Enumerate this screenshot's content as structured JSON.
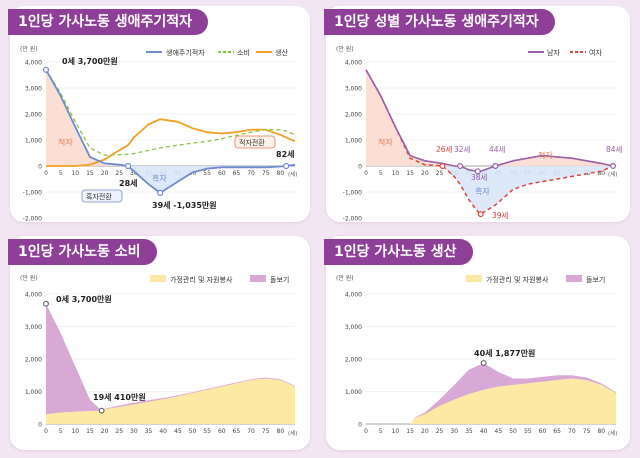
{
  "charts": [
    {
      "title": "1인당 가사노동 생애주기적자",
      "unit": "(만 원)",
      "xunit": "(세)",
      "legend": [
        "생애주기적자",
        "소비",
        "생산"
      ],
      "annotations": {
        "start": "0세 3,700만원",
        "low": "39세 -1,035만원",
        "turn1": "28세",
        "turn2": "82세",
        "deficit": "적자",
        "surplus": "흑자",
        "to_surplus": "흑자전환",
        "to_deficit": "적자전환"
      }
    },
    {
      "title": "1인당 성별 가사노동 생애주기적자",
      "unit": "(만 원)",
      "xunit": "(세)",
      "legend": [
        "남자",
        "여자"
      ],
      "annotations": {
        "f1": "26세",
        "m1": "32세",
        "m2": "44세",
        "m3": "84세",
        "f_low": "38세",
        "f_low2": "39세",
        "deficit1": "적자",
        "deficit2": "적자",
        "surplus": "흑자"
      }
    },
    {
      "title": "1인당 가사노동 소비",
      "unit": "(만 원)",
      "xunit": "(세)",
      "legend": [
        "가정관리 및 자원봉사",
        "돌보기"
      ],
      "annotations": {
        "start": "0세 3,700만원",
        "min": "19세 410만원"
      }
    },
    {
      "title": "1인당 가사노동 생산",
      "unit": "(만 원)",
      "xunit": "(세)",
      "legend": [
        "가정관리 및 자원봉사",
        "돌보기"
      ],
      "annotations": {
        "peak": "40세 1,877만원"
      }
    }
  ],
  "colors": {
    "lcd": "#6f8bd0",
    "consumption": "#8cc63f",
    "production": "#f2a024",
    "male": "#9b5ea8",
    "female": "#e0443c",
    "deficit_fill": "#fbdcd0",
    "surplus_fill": "#d9e6f7",
    "housework": "#fbe9a4",
    "care": "#d9a9d6"
  },
  "chart_data": [
    {
      "type": "line",
      "title": "1인당 가사노동 생애주기적자",
      "x": [
        0,
        5,
        10,
        15,
        20,
        25,
        28,
        30,
        35,
        39,
        45,
        50,
        55,
        60,
        65,
        70,
        75,
        80,
        82,
        85
      ],
      "xticks": [
        0,
        5,
        10,
        15,
        20,
        25,
        30,
        35,
        40,
        45,
        50,
        55,
        60,
        65,
        70,
        75,
        80
      ],
      "yticks": [
        -2000,
        -1000,
        0,
        1000,
        2000,
        3000,
        4000
      ],
      "ylim": [
        -2000,
        4000
      ],
      "xlim": [
        0,
        85
      ],
      "series": [
        {
          "name": "생애주기적자",
          "values": [
            3700,
            2700,
            1500,
            350,
            100,
            50,
            0,
            -200,
            -700,
            -1035,
            -600,
            -250,
            -100,
            -50,
            -50,
            -50,
            -50,
            -20,
            0,
            50
          ]
        },
        {
          "name": "소비",
          "values": [
            3700,
            2800,
            1700,
            700,
            420,
            430,
            450,
            480,
            600,
            700,
            800,
            880,
            950,
            1050,
            1180,
            1300,
            1400,
            1400,
            1350,
            1200
          ]
        },
        {
          "name": "생산",
          "values": [
            0,
            0,
            0,
            50,
            250,
            600,
            800,
            1100,
            1600,
            1800,
            1700,
            1450,
            1300,
            1250,
            1300,
            1400,
            1400,
            1200,
            1100,
            950
          ]
        }
      ]
    },
    {
      "type": "line",
      "title": "1인당 성별 가사노동 생애주기적자",
      "x": [
        0,
        5,
        10,
        15,
        20,
        26,
        30,
        32,
        35,
        38,
        39,
        44,
        50,
        55,
        60,
        65,
        70,
        75,
        80,
        84
      ],
      "xticks": [
        0,
        5,
        10,
        15,
        20,
        25,
        30,
        35,
        40,
        45,
        50,
        55,
        60,
        65,
        70,
        75,
        80
      ],
      "yticks": [
        -2000,
        -1000,
        0,
        1000,
        2000,
        3000,
        4000
      ],
      "ylim": [
        -2000,
        4000
      ],
      "xlim": [
        0,
        85
      ],
      "series": [
        {
          "name": "남자",
          "values": [
            3700,
            2700,
            1500,
            400,
            200,
            100,
            0,
            0,
            -150,
            -200,
            -200,
            0,
            200,
            300,
            400,
            350,
            300,
            200,
            100,
            0
          ]
        },
        {
          "name": "여자",
          "values": [
            3700,
            2700,
            1500,
            300,
            50,
            0,
            -400,
            -700,
            -1300,
            -1750,
            -1850,
            -1500,
            -900,
            -700,
            -600,
            -500,
            -400,
            -300,
            -200,
            0
          ]
        }
      ]
    },
    {
      "type": "area",
      "title": "1인당 가사노동 소비",
      "x": [
        0,
        5,
        10,
        15,
        19,
        20,
        25,
        30,
        35,
        40,
        45,
        50,
        55,
        60,
        65,
        70,
        75,
        80,
        85
      ],
      "xticks": [
        0,
        5,
        10,
        15,
        20,
        25,
        30,
        35,
        40,
        45,
        50,
        55,
        60,
        65,
        70,
        75,
        80
      ],
      "yticks": [
        0,
        1000,
        2000,
        3000,
        4000
      ],
      "ylim": [
        0,
        4000
      ],
      "xlim": [
        0,
        85
      ],
      "series": [
        {
          "name": "가정관리 및 자원봉사",
          "values": [
            300,
            350,
            380,
            400,
            410,
            450,
            520,
            600,
            680,
            760,
            850,
            950,
            1050,
            1150,
            1250,
            1350,
            1400,
            1350,
            1150
          ]
        },
        {
          "name": "돌보기",
          "values": [
            3400,
            2450,
            1400,
            350,
            0,
            20,
            50,
            60,
            50,
            40,
            30,
            30,
            30,
            30,
            30,
            30,
            30,
            30,
            30
          ]
        }
      ]
    },
    {
      "type": "area",
      "title": "1인당 가사노동 생산",
      "x": [
        0,
        5,
        10,
        15,
        17,
        20,
        25,
        30,
        35,
        40,
        45,
        50,
        55,
        60,
        65,
        70,
        75,
        80,
        85
      ],
      "xticks": [
        0,
        5,
        10,
        15,
        20,
        25,
        30,
        35,
        40,
        45,
        50,
        55,
        60,
        65,
        70,
        75,
        80
      ],
      "yticks": [
        0,
        1000,
        2000,
        3000,
        4000
      ],
      "ylim": [
        0,
        4000
      ],
      "xlim": [
        0,
        85
      ],
      "series": [
        {
          "name": "가정관리 및 자원봉사",
          "values": [
            0,
            0,
            0,
            0,
            200,
            300,
            550,
            750,
            920,
            1050,
            1150,
            1200,
            1250,
            1300,
            1350,
            1400,
            1350,
            1200,
            950
          ]
        },
        {
          "name": "돌보기",
          "values": [
            0,
            0,
            0,
            0,
            20,
            50,
            200,
            450,
            750,
            827,
            450,
            200,
            150,
            150,
            150,
            100,
            80,
            50,
            30
          ]
        }
      ]
    }
  ]
}
